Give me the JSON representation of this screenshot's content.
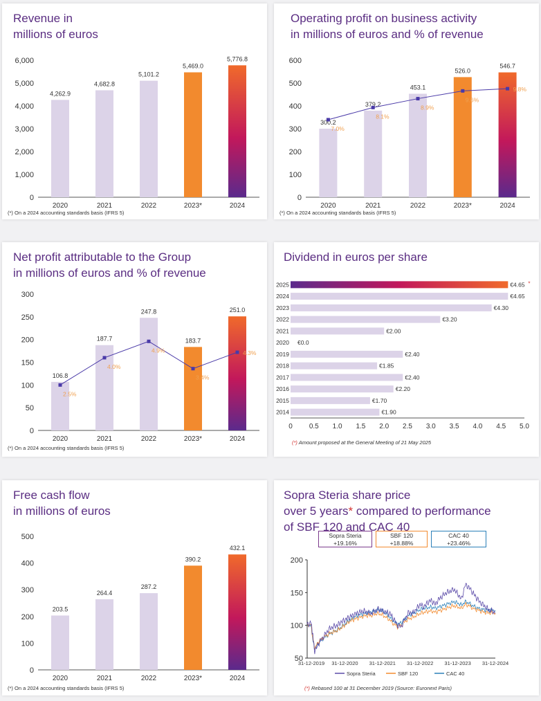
{
  "colors": {
    "bar": "#dcd3e8",
    "accent_orange": "#f28a2e",
    "grad_top": "#f06a2b",
    "grad_mid": "#c2185b",
    "grad_bottom": "#5b2a8c",
    "line": "#4a3aa8",
    "pct": "#f0a050",
    "title": "#5a2d82"
  },
  "panels": {
    "revenue": {
      "title1": "Revenue in",
      "title2": "millions of euros",
      "footnote": "(*) On a 2024 accounting standards basis (IFRS 5)"
    },
    "operating": {
      "title1": "Operating profit on business activity",
      "title2": "in millions of euros and % of revenue",
      "footnote": "(*) On a 2024 accounting standards basis (IFRS 5)"
    },
    "netprofit": {
      "title1": "Net profit attributable to the Group",
      "title2": "in millions of euros and % of revenue",
      "footnote": "(*) On a 2024 accounting standards basis (IFRS 5)"
    },
    "dividend": {
      "title1": "Dividend in euros per share",
      "footnote_mark": "(*)",
      "footnote": " Amount proposed at the General Meeting of 21 May 2025"
    },
    "fcf": {
      "title1": "Free cash flow",
      "title2": "in millions of euros",
      "footnote": "(*) On a 2024 accounting standards basis (IFRS 5)"
    },
    "share": {
      "title1": "Sopra Steria share price",
      "title2a": "over 5 years",
      "title2mark": "*",
      "title2b": " compared to performance",
      "title3": "of SBF 120 and CAC 40",
      "footnote_mark": "(*)",
      "footnote": " Rebased 100 at 31 December 2019 (Source: Euronext Paris)",
      "legend": [
        {
          "name": "Sopra Steria",
          "value": "+19.16%",
          "color": "#7b3a8c"
        },
        {
          "name": "SBF 120",
          "value": "+18.88%",
          "color": "#f28a2e"
        },
        {
          "name": "CAC 40",
          "value": "+23.46%",
          "color": "#2a7fb8"
        }
      ]
    }
  },
  "chart_data": [
    {
      "id": "revenue",
      "type": "bar",
      "categories": [
        "2020",
        "2021",
        "2022",
        "2023*",
        "2024"
      ],
      "values": [
        4262.9,
        4682.8,
        5101.2,
        5469.0,
        5776.8
      ],
      "labels": [
        "4,262.9",
        "4,682.8",
        "5,101.2",
        "5,469.0",
        "5,776.8"
      ],
      "ylim": [
        0,
        6000
      ],
      "yticks": [
        "0",
        "1,000",
        "2,000",
        "3,000",
        "4,000",
        "5,000",
        "6,000"
      ],
      "ytick_values": [
        0,
        1000,
        2000,
        3000,
        4000,
        5000,
        6000
      ]
    },
    {
      "id": "operating",
      "type": "bar+line",
      "categories": [
        "2020",
        "2021",
        "2022",
        "2023*",
        "2024"
      ],
      "values": [
        300.2,
        379.2,
        453.1,
        526.0,
        546.7
      ],
      "labels": [
        "300.2",
        "379.2",
        "453.1",
        "526.0",
        "546.7"
      ],
      "pct": [
        7.0,
        8.1,
        8.9,
        9.6,
        9.8
      ],
      "pct_labels": [
        "7.0%",
        "8.1%",
        "8.9%",
        "9.6%",
        "9.8%"
      ],
      "ylim": [
        0,
        600
      ],
      "yticks": [
        "0",
        "100",
        "200",
        "300",
        "400",
        "500",
        "600"
      ],
      "ytick_values": [
        0,
        100,
        200,
        300,
        400,
        500,
        600
      ]
    },
    {
      "id": "netprofit",
      "type": "bar+line",
      "categories": [
        "2020",
        "2021",
        "2022",
        "2023*",
        "2024"
      ],
      "values": [
        106.8,
        187.7,
        247.8,
        183.7,
        251.0
      ],
      "labels": [
        "106.8",
        "187.7",
        "247.8",
        "183.7",
        "251.0"
      ],
      "pct": [
        2.5,
        4.0,
        4.9,
        3.4,
        4.3
      ],
      "pct_labels": [
        "2.5%",
        "4.0%",
        "4.9%",
        "3.4%",
        "4.3%"
      ],
      "ylim": [
        0,
        300
      ],
      "yticks": [
        "0",
        "50",
        "100",
        "150",
        "200",
        "250",
        "300"
      ],
      "ytick_values": [
        0,
        50,
        100,
        150,
        200,
        250,
        300
      ]
    },
    {
      "id": "dividend",
      "type": "bar",
      "orientation": "horizontal",
      "categories": [
        "2025",
        "2024",
        "2023",
        "2022",
        "2021",
        "2020",
        "2019",
        "2018",
        "2017",
        "2016",
        "2015",
        "2014"
      ],
      "values": [
        4.65,
        4.65,
        4.3,
        3.2,
        2.0,
        0.0,
        2.4,
        1.85,
        2.4,
        2.2,
        1.7,
        1.9
      ],
      "labels": [
        "€4.65",
        "€4.65",
        "€4.30",
        "€3.20",
        "€2.00",
        "€0.0",
        "€2.40",
        "€1.85",
        "€2.40",
        "€2.20",
        "€1.70",
        "€1.90"
      ],
      "xlim": [
        0,
        5
      ],
      "xticks": [
        "0",
        "0.5",
        "1.0",
        "1.5",
        "2.0",
        "2.5",
        "3.0",
        "3.5",
        "4.0",
        "4.5",
        "5.0"
      ],
      "xtick_values": [
        0,
        0.5,
        1,
        1.5,
        2,
        2.5,
        3,
        3.5,
        4,
        4.5,
        5
      ]
    },
    {
      "id": "fcf",
      "type": "bar",
      "categories": [
        "2020",
        "2021",
        "2022",
        "2023*",
        "2024"
      ],
      "values": [
        203.5,
        264.4,
        287.2,
        390.2,
        432.1
      ],
      "labels": [
        "203.5",
        "264.4",
        "287.2",
        "390.2",
        "432.1"
      ],
      "ylim": [
        0,
        500
      ],
      "yticks": [
        "0",
        "100",
        "200",
        "300",
        "400",
        "500"
      ],
      "ytick_values": [
        0,
        100,
        200,
        300,
        400,
        500
      ]
    },
    {
      "id": "share",
      "type": "line",
      "ylim": [
        50,
        200
      ],
      "yticks": [
        "50",
        "100",
        "150",
        "200"
      ],
      "ytick_values": [
        50,
        100,
        150,
        200
      ],
      "xticks": [
        "31-12-2019",
        "31-12-2020",
        "31-12-2021",
        "31-12-2022",
        "31-12-2023",
        "31-12-2024"
      ],
      "series": [
        {
          "name": "Sopra Steria",
          "color": "#5b4aa8",
          "x": [
            0,
            0.1,
            0.15,
            0.2,
            0.3,
            0.4,
            0.5,
            0.6,
            0.7,
            0.8,
            0.9,
            1.0,
            1.1,
            1.2,
            1.3,
            1.4,
            1.5,
            1.6,
            1.7,
            1.8,
            1.9,
            2.0,
            2.1,
            2.2,
            2.3,
            2.4,
            2.5,
            2.6,
            2.7,
            2.8,
            2.9,
            3.0,
            3.1,
            3.2,
            3.3,
            3.4,
            3.5,
            3.6,
            3.7,
            3.8,
            3.9,
            4.0,
            4.1,
            4.2,
            4.3,
            4.4,
            4.5,
            4.6,
            4.7,
            4.8,
            4.9,
            5.0
          ],
          "values": [
            100,
            105,
            85,
            60,
            72,
            80,
            88,
            95,
            98,
            100,
            105,
            108,
            112,
            115,
            118,
            120,
            122,
            120,
            118,
            122,
            125,
            122,
            120,
            118,
            110,
            100,
            98,
            110,
            120,
            118,
            125,
            132,
            128,
            135,
            138,
            132,
            140,
            145,
            150,
            152,
            155,
            148,
            140,
            162,
            158,
            150,
            142,
            135,
            130,
            125,
            122,
            119
          ]
        },
        {
          "name": "SBF 120",
          "color": "#f28a2e",
          "x": [
            0,
            0.1,
            0.15,
            0.2,
            0.3,
            0.4,
            0.5,
            0.6,
            0.7,
            0.8,
            0.9,
            1.0,
            1.1,
            1.2,
            1.3,
            1.4,
            1.5,
            1.6,
            1.7,
            1.8,
            1.9,
            2.0,
            2.1,
            2.2,
            2.3,
            2.4,
            2.5,
            2.6,
            2.7,
            2.8,
            2.9,
            3.0,
            3.1,
            3.2,
            3.3,
            3.4,
            3.5,
            3.6,
            3.7,
            3.8,
            3.9,
            4.0,
            4.1,
            4.2,
            4.3,
            4.4,
            4.5,
            4.6,
            4.7,
            4.8,
            4.9,
            5.0
          ],
          "values": [
            100,
            102,
            80,
            65,
            75,
            80,
            84,
            88,
            90,
            92,
            96,
            100,
            105,
            108,
            110,
            112,
            114,
            115,
            115,
            117,
            118,
            116,
            112,
            108,
            102,
            98,
            100,
            106,
            110,
            112,
            115,
            118,
            120,
            121,
            122,
            120,
            122,
            124,
            126,
            128,
            130,
            128,
            126,
            132,
            130,
            126,
            124,
            122,
            120,
            119,
            119,
            119
          ]
        },
        {
          "name": "CAC 40",
          "color": "#2a7fb8",
          "x": [
            0,
            0.1,
            0.15,
            0.2,
            0.3,
            0.4,
            0.5,
            0.6,
            0.7,
            0.8,
            0.9,
            1.0,
            1.1,
            1.2,
            1.3,
            1.4,
            1.5,
            1.6,
            1.7,
            1.8,
            1.9,
            2.0,
            2.1,
            2.2,
            2.3,
            2.4,
            2.5,
            2.6,
            2.7,
            2.8,
            2.9,
            3.0,
            3.1,
            3.2,
            3.3,
            3.4,
            3.5,
            3.6,
            3.7,
            3.8,
            3.9,
            4.0,
            4.1,
            4.2,
            4.3,
            4.4,
            4.5,
            4.6,
            4.7,
            4.8,
            4.9,
            5.0
          ],
          "values": [
            100,
            101,
            78,
            63,
            73,
            79,
            83,
            87,
            90,
            93,
            97,
            102,
            107,
            111,
            114,
            116,
            118,
            119,
            120,
            122,
            124,
            122,
            118,
            112,
            106,
            102,
            104,
            110,
            115,
            118,
            121,
            124,
            126,
            127,
            128,
            126,
            128,
            130,
            132,
            134,
            136,
            134,
            131,
            136,
            134,
            130,
            127,
            125,
            124,
            123,
            123,
            123
          ]
        }
      ]
    }
  ]
}
